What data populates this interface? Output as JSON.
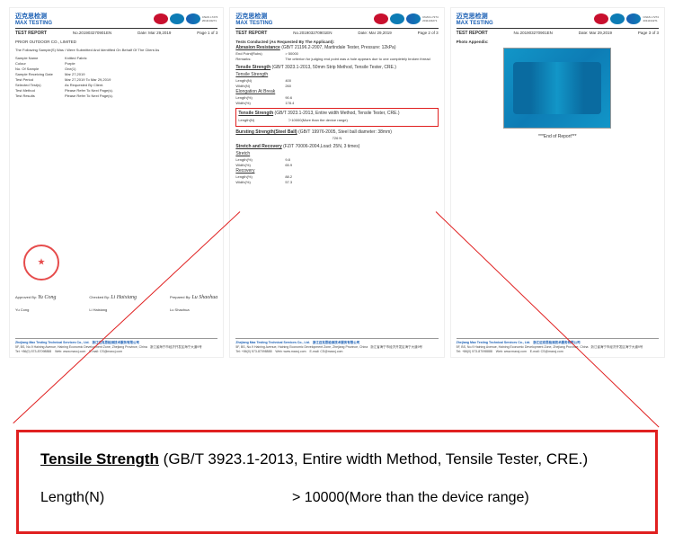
{
  "brand": {
    "cn": "迈克思检测",
    "en": "MAX TESTING",
    "cert_num": "2011134271",
    "cert_std": "CNAS L7274"
  },
  "report": {
    "title": "TEST REPORT",
    "no_label": "No.",
    "no": "201903270901EN",
    "date_label": "Date:",
    "date": "Mar 29,2019",
    "page_label": "Page",
    "of": "of"
  },
  "page1": {
    "company": "PRIOR OUTDOOR CO., LIMITED",
    "intro": "The Following Sample(S) Was / Were Submitted And Identified On Behalf Of The Client As",
    "fields": [
      {
        "label": "Sample Name",
        "val": "Knitted Fabric"
      },
      {
        "label": "Colour",
        "val": "Purple"
      },
      {
        "label": "No. Of Sample",
        "val": "One(1)"
      },
      {
        "label": "Sample Receiving Date",
        "val": "Mar 27,2019"
      },
      {
        "label": "Test Period",
        "val": "Mar 27,2019 To Mar 29,2019"
      },
      {
        "label": "Selected Test(s)",
        "val": "As Requested By Client."
      },
      {
        "label": "Test Method",
        "val": "Please Refer To Next Page(s)."
      },
      {
        "label": "Test Results",
        "val": "Please Refer To Next Page(s)."
      }
    ],
    "sigs": [
      {
        "role": "Approved By:",
        "sig": "Yu Cong",
        "name": "Yu Cong"
      },
      {
        "role": "Checked By:",
        "sig": "Li Haixiang",
        "name": "Li Haixiang"
      },
      {
        "role": "Prepared By:",
        "sig": "Lu Shaohua",
        "name": "Lu Shaohua"
      }
    ]
  },
  "page2": {
    "header": "Tests Conducted (As Requested By The Applicant):",
    "t1": {
      "title": "Abrasion Resistance",
      "std": "(GB/T 21196.2-2007, Martindale Tester, Pressure: 12kPa)",
      "rows": [
        {
          "l": "End Point(Rubs)",
          "v": "> 50000"
        }
      ],
      "remark_l": "Remarks:",
      "remark": "The criterion for judging end point was a hole appears due to one completely broken thread"
    },
    "t2": {
      "title": "Tensile Strength",
      "std": "(GB/T 3923.1-2013, 50mm Strip Method, Tensile Tester, CRE.)",
      "sub1": "Tensile Strength",
      "rows1": [
        {
          "l": "Length(N)",
          "v": "400"
        },
        {
          "l": "Width(N)",
          "v": "260"
        }
      ],
      "sub2": "Elongation At Break",
      "rows2": [
        {
          "l": "Length(%)",
          "v": "90.6"
        },
        {
          "l": "Width(%)",
          "v": "178.4"
        }
      ]
    },
    "t3": {
      "title": "Tensile Strength",
      "std": "(GB/T 3923.1-2013, Entire width Method, Tensile Tester, CRE.)",
      "rows": [
        {
          "l": "Length(N)",
          "v": "＞10000(More than the device range)"
        }
      ]
    },
    "t4": {
      "title": "Bursting Strength(Steel Ball)",
      "std": "(GB/T 19976-2005, Steel ball diameter: 38mm)",
      "rows": [
        {
          "l": "",
          "v": "726 N"
        }
      ]
    },
    "t5": {
      "title": "Stretch and Recovery",
      "std": "(FZ/T 70006-2004,Load: 25N, 3 times)",
      "sub1": "Stretch",
      "rows1": [
        {
          "l": "Length(%)",
          "v": "9.8"
        },
        {
          "l": "Width(%)",
          "v": "65.9"
        }
      ],
      "sub2": "Recovery",
      "rows2": [
        {
          "l": "Length(%)",
          "v": "88.2"
        },
        {
          "l": "Width(%)",
          "v": "57.3"
        }
      ]
    }
  },
  "page3": {
    "header": "Photo Appendix:",
    "end": "***End of Report***"
  },
  "footer": {
    "co_en": "Zhejiang Max Testing Technical Services Co., Ltd.",
    "co_cn": "浙江迈克思检测技术服务有限公司",
    "addr": "5F, BS, No.9 Haining Avenue, Haining Economic Development Zone, Zhejiang Province, China",
    "addr_cn": "浙江省海宁市经济开发区海宁大道9号",
    "tel": "Tel: +86(0) 573-87098888",
    "web": "Web: www.maxcj.com",
    "email": "E-mail: CS@maxcj.com"
  },
  "detail": {
    "title_bold": "Tensile Strength",
    "title_rest": " (GB/T 3923.1-2013, Entire width Method, Tensile Tester, CRE.)",
    "row_label": "Length(N)",
    "row_value": "> 10000(More than the device range)"
  },
  "colors": {
    "accent": "#e02020",
    "brand": "#1a5fb4"
  }
}
